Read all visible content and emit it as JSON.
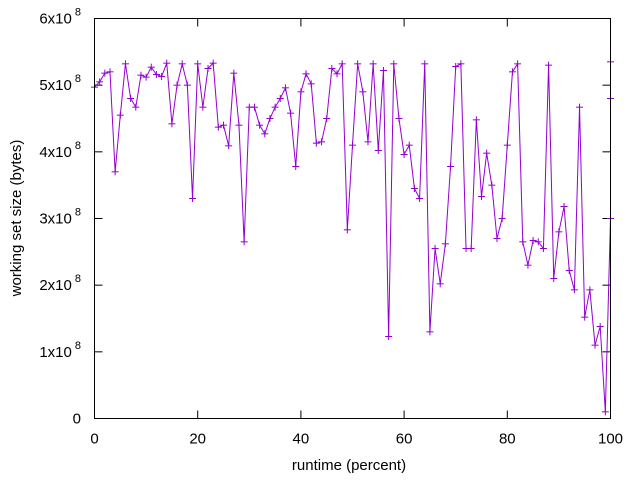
{
  "chart_data": {
    "type": "line",
    "title": "",
    "xlabel": "runtime (percent)",
    "ylabel": "working set size (bytes)",
    "xlim": [
      0,
      100
    ],
    "ylim": [
      0,
      600000000
    ],
    "x_ticks": [
      {
        "value": 0,
        "label": "0"
      },
      {
        "value": 20,
        "label": "20"
      },
      {
        "value": 40,
        "label": "40"
      },
      {
        "value": 60,
        "label": "60"
      },
      {
        "value": 80,
        "label": "80"
      },
      {
        "value": 100,
        "label": "100"
      }
    ],
    "y_ticks": [
      {
        "value": 0,
        "mantissa": "0",
        "exponent": ""
      },
      {
        "value": 100000000,
        "mantissa": "1x10",
        "exponent": "8"
      },
      {
        "value": 200000000,
        "mantissa": "2x10",
        "exponent": "8"
      },
      {
        "value": 300000000,
        "mantissa": "3x10",
        "exponent": "8"
      },
      {
        "value": 400000000,
        "mantissa": "4x10",
        "exponent": "8"
      },
      {
        "value": 500000000,
        "mantissa": "5x10",
        "exponent": "8"
      },
      {
        "value": 600000000,
        "mantissa": "6x10",
        "exponent": "8"
      }
    ],
    "grid": false,
    "legend": "none",
    "series": [
      {
        "color": "#9400d3",
        "marker": "plus",
        "x": [
          0,
          1,
          2,
          3,
          4,
          5,
          6,
          7,
          8,
          9,
          10,
          11,
          12,
          13,
          14,
          15,
          16,
          17,
          18,
          19,
          20,
          21,
          22,
          23,
          24,
          25,
          26,
          27,
          28,
          29,
          30,
          31,
          32,
          33,
          34,
          35,
          36,
          37,
          38,
          39,
          40,
          41,
          42,
          43,
          44,
          45,
          46,
          47,
          48,
          49,
          50,
          51,
          52,
          53,
          54,
          55,
          56,
          57,
          58,
          59,
          60,
          61,
          62,
          63,
          64,
          65,
          66,
          67,
          68,
          69,
          70,
          71,
          72,
          73,
          74,
          75,
          76,
          77,
          78,
          79,
          80,
          81,
          82,
          83,
          84,
          85,
          86,
          87,
          88,
          89,
          90,
          91,
          92,
          93,
          94,
          95,
          96,
          97,
          98,
          99,
          100,
          100,
          100
        ],
        "y": [
          497000000,
          505000000,
          518000000,
          520000000,
          370000000,
          455000000,
          532000000,
          480000000,
          467000000,
          515000000,
          512000000,
          527000000,
          516000000,
          513000000,
          533000000,
          442000000,
          500000000,
          532000000,
          500000000,
          330000000,
          532000000,
          467000000,
          525000000,
          533000000,
          437000000,
          440000000,
          409000000,
          518000000,
          440000000,
          265000000,
          467000000,
          467000000,
          440000000,
          427000000,
          450000000,
          467000000,
          480000000,
          496000000,
          458000000,
          378000000,
          490000000,
          517000000,
          502000000,
          413000000,
          415000000,
          450000000,
          525000000,
          517000000,
          532000000,
          283000000,
          410000000,
          532000000,
          490000000,
          415000000,
          532000000,
          402000000,
          522000000,
          123000000,
          532000000,
          450000000,
          396000000,
          410000000,
          345000000,
          330000000,
          532000000,
          130000000,
          255000000,
          202000000,
          262000000,
          378000000,
          528000000,
          532000000,
          255000000,
          255000000,
          448000000,
          333000000,
          398000000,
          350000000,
          270000000,
          300000000,
          410000000,
          520000000,
          532000000,
          265000000,
          230000000,
          267000000,
          265000000,
          255000000,
          530000000,
          210000000,
          280000000,
          318000000,
          222000000,
          193000000,
          467000000,
          152000000,
          193000000,
          110000000,
          138000000,
          10000000,
          300000000,
          535000000,
          480000000
        ]
      }
    ]
  }
}
